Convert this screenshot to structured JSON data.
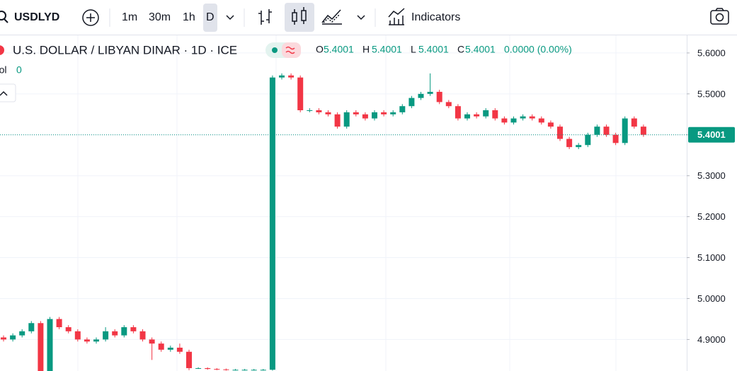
{
  "toolbar": {
    "symbol": "USDLYD",
    "intervals": [
      "1m",
      "30m",
      "1h",
      "D"
    ],
    "indicators": "Indicators"
  },
  "chart_data": {
    "type": "candlestick",
    "title": "U.S. DOLLAR / LIBYAN DINAR · 1D · ICE",
    "legend": {
      "labels": [
        "O",
        "H",
        "L",
        "C"
      ],
      "values": [
        5.4001,
        5.4001,
        5.4001,
        5.4001
      ],
      "change": "0.0000 (0.00%)"
    },
    "volume": {
      "label": "Vol",
      "value": 0
    },
    "up_color": "#089981",
    "down_color": "#f23645",
    "ylim": [
      4.823,
      5.643
    ],
    "yticks": [
      {
        "value": 5.6,
        "label": "5.6000"
      },
      {
        "value": 5.5,
        "label": "5.5000"
      },
      {
        "value": 5.4,
        "label": "5.4000"
      },
      {
        "value": 5.3,
        "label": "5.3000"
      },
      {
        "value": 5.2,
        "label": "5.2000"
      },
      {
        "value": 5.1,
        "label": "5.1000"
      },
      {
        "value": 5.0,
        "label": "5.0000"
      },
      {
        "value": 4.9,
        "label": "4.9000"
      }
    ],
    "grid": true,
    "last_price": 5.4001,
    "open": [
      4.905,
      4.9,
      4.91,
      4.92,
      4.94,
      4.82,
      4.95,
      4.93,
      4.92,
      4.9,
      4.895,
      4.9,
      4.92,
      4.91,
      4.93,
      4.92,
      4.9,
      4.89,
      4.875,
      4.88,
      4.87,
      4.83,
      4.83,
      4.828,
      4.827,
      4.826,
      4.826,
      4.826,
      4.826,
      4.826,
      5.54,
      5.545,
      5.54,
      5.46,
      5.46,
      5.455,
      5.45,
      5.42,
      5.455,
      5.45,
      5.44,
      5.455,
      5.45,
      5.455,
      5.47,
      5.49,
      5.5,
      5.505,
      5.48,
      5.47,
      5.44,
      5.45,
      5.445,
      5.46,
      5.44,
      5.43,
      5.44,
      5.445,
      5.44,
      5.43,
      5.42,
      5.39,
      5.37,
      5.375,
      5.4,
      5.42,
      5.4,
      5.38,
      5.44,
      5.42
    ],
    "high": [
      4.91,
      4.915,
      4.925,
      4.945,
      4.945,
      4.955,
      4.955,
      4.935,
      4.925,
      4.905,
      4.905,
      4.93,
      4.925,
      4.935,
      4.935,
      4.925,
      4.905,
      4.895,
      4.885,
      4.89,
      4.875,
      4.832,
      4.832,
      4.83,
      4.829,
      4.828,
      4.828,
      4.828,
      4.828,
      5.545,
      5.55,
      5.55,
      5.545,
      5.465,
      5.465,
      5.46,
      5.455,
      5.46,
      5.46,
      5.455,
      5.46,
      5.46,
      5.46,
      5.475,
      5.495,
      5.505,
      5.55,
      5.51,
      5.485,
      5.475,
      5.455,
      5.455,
      5.465,
      5.465,
      5.445,
      5.445,
      5.45,
      5.45,
      5.445,
      5.435,
      5.425,
      5.395,
      5.38,
      5.405,
      5.425,
      5.425,
      5.405,
      5.445,
      5.445,
      5.425
    ],
    "low": [
      4.895,
      4.895,
      4.905,
      4.915,
      4.815,
      4.815,
      4.925,
      4.915,
      4.895,
      4.89,
      4.89,
      4.895,
      4.905,
      4.905,
      4.915,
      4.895,
      4.85,
      4.87,
      4.87,
      4.865,
      4.825,
      4.828,
      4.826,
      4.825,
      4.824,
      4.824,
      4.824,
      4.824,
      4.824,
      4.824,
      5.535,
      5.535,
      5.455,
      5.455,
      5.45,
      5.445,
      5.415,
      5.415,
      5.445,
      5.435,
      5.435,
      5.445,
      5.445,
      5.45,
      5.465,
      5.485,
      5.495,
      5.475,
      5.465,
      5.435,
      5.435,
      5.44,
      5.44,
      5.435,
      5.425,
      5.425,
      5.435,
      5.435,
      5.425,
      5.415,
      5.385,
      5.365,
      5.365,
      5.37,
      5.395,
      5.395,
      5.375,
      5.375,
      5.415,
      5.395
    ],
    "close": [
      4.9,
      4.91,
      4.92,
      4.94,
      4.82,
      4.95,
      4.93,
      4.92,
      4.9,
      4.895,
      4.9,
      4.92,
      4.91,
      4.93,
      4.92,
      4.9,
      4.89,
      4.875,
      4.88,
      4.87,
      4.83,
      4.83,
      4.828,
      4.827,
      4.826,
      4.826,
      4.826,
      4.826,
      4.826,
      5.54,
      5.545,
      5.54,
      5.46,
      5.46,
      5.455,
      5.45,
      5.42,
      5.455,
      5.45,
      5.44,
      5.455,
      5.45,
      5.455,
      5.47,
      5.49,
      5.5,
      5.505,
      5.48,
      5.47,
      5.44,
      5.45,
      5.445,
      5.46,
      5.44,
      5.43,
      5.44,
      5.445,
      5.44,
      5.43,
      5.42,
      5.39,
      5.37,
      5.375,
      5.4,
      5.42,
      5.4,
      5.38,
      5.44,
      5.42,
      5.4001
    ]
  }
}
